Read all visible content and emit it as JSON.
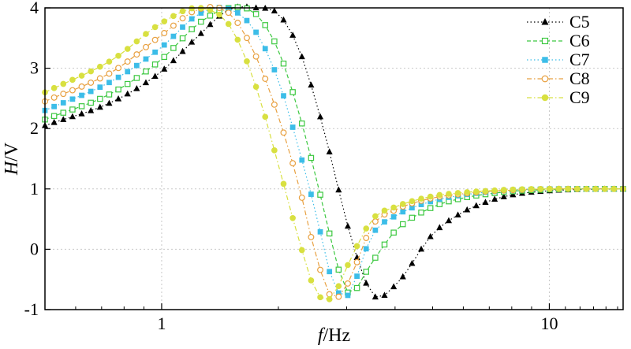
{
  "chart_data": {
    "type": "line",
    "x_scale": "log",
    "xlim": [
      0.5,
      15.5
    ],
    "ylim": [
      -1,
      4
    ],
    "grid": true,
    "legend_position": "top-right",
    "xlabel": {
      "italic": "f",
      "rest": "/Hz"
    },
    "ylabel": {
      "italic": "H",
      "rest": "/V"
    },
    "x_ticks": [
      {
        "value": 1,
        "label": "1"
      },
      {
        "value": 10,
        "label": "10"
      }
    ],
    "y_ticks": [
      {
        "value": -1,
        "label": "-1"
      },
      {
        "value": 0,
        "label": "0"
      },
      {
        "value": 1,
        "label": "1"
      },
      {
        "value": 2,
        "label": "2"
      },
      {
        "value": 3,
        "label": "3"
      },
      {
        "value": 4,
        "label": "4"
      }
    ],
    "x": [
      0.5,
      0.75,
      1.0,
      1.25,
      1.5,
      1.75,
      2.0,
      2.25,
      2.5,
      2.75,
      3.0,
      3.5,
      4.0,
      5.0,
      6.0,
      7.0,
      8.0,
      10.0,
      12.0,
      15.5
    ],
    "series": [
      {
        "name": "C5",
        "color": "#000000",
        "marker": "triangle",
        "line": "dotted",
        "values": [
          2.05,
          2.45,
          2.95,
          3.55,
          3.98,
          4.0,
          3.9,
          3.35,
          2.45,
          1.45,
          0.45,
          -0.75,
          -0.6,
          0.25,
          0.62,
          0.8,
          0.9,
          0.97,
          0.99,
          1.0
        ]
      },
      {
        "name": "C6",
        "color": "#3cc840",
        "marker": "square-open",
        "line": "dashed",
        "values": [
          2.15,
          2.6,
          3.15,
          3.75,
          4.0,
          3.9,
          3.3,
          2.3,
          1.2,
          0.1,
          -0.7,
          -0.2,
          0.3,
          0.7,
          0.85,
          0.92,
          0.96,
          0.99,
          1.0,
          1.0
        ]
      },
      {
        "name": "C7",
        "color": "#3cbde8",
        "marker": "square-filled",
        "line": "dotted",
        "values": [
          2.3,
          2.8,
          3.35,
          3.9,
          3.98,
          3.6,
          2.8,
          1.7,
          0.6,
          -0.5,
          -0.78,
          0.25,
          0.55,
          0.8,
          0.9,
          0.95,
          0.98,
          1.0,
          1.0,
          1.0
        ]
      },
      {
        "name": "C8",
        "color": "#e8a040",
        "marker": "circle-open",
        "line": "dashdot",
        "values": [
          2.45,
          2.95,
          3.55,
          3.98,
          3.9,
          3.2,
          2.2,
          1.1,
          -0.1,
          -0.8,
          -0.6,
          0.4,
          0.65,
          0.85,
          0.92,
          0.96,
          0.98,
          1.0,
          1.0,
          1.0
        ]
      },
      {
        "name": "C9",
        "color": "#d8e040",
        "marker": "circle-filled",
        "line": "dashdot",
        "values": [
          2.6,
          3.15,
          3.75,
          4.0,
          3.7,
          2.7,
          1.4,
          0.2,
          -0.7,
          -0.8,
          -0.3,
          0.5,
          0.7,
          0.88,
          0.94,
          0.97,
          0.99,
          1.0,
          1.0,
          1.0
        ]
      }
    ]
  }
}
